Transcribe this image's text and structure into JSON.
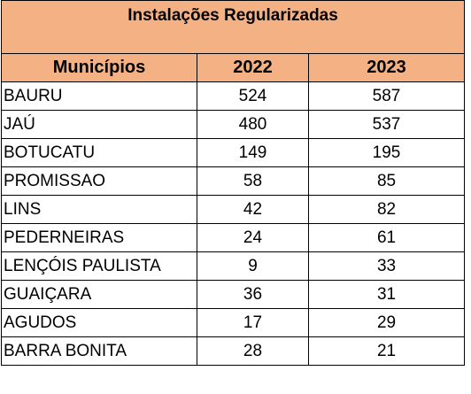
{
  "table": {
    "title": "Instalações Regularizadas",
    "headers": [
      "Municípios",
      "2022",
      "2023"
    ],
    "rows": [
      {
        "municipio": "BAURU",
        "y2022": "524",
        "y2023": "587"
      },
      {
        "municipio": "JAÚ",
        "y2022": "480",
        "y2023": "537"
      },
      {
        "municipio": "BOTUCATU",
        "y2022": "149",
        "y2023": "195"
      },
      {
        "municipio": "PROMISSAO",
        "y2022": "58",
        "y2023": "85"
      },
      {
        "municipio": "LINS",
        "y2022": "42",
        "y2023": "82"
      },
      {
        "municipio": "PEDERNEIRAS",
        "y2022": "24",
        "y2023": "61"
      },
      {
        "municipio": "LENÇÓIS PAULISTA",
        "y2022": "9",
        "y2023": "33"
      },
      {
        "municipio": "GUAIÇARA",
        "y2022": "36",
        "y2023": "31"
      },
      {
        "municipio": "AGUDOS",
        "y2022": "17",
        "y2023": "29"
      },
      {
        "municipio": "BARRA BONITA",
        "y2022": "28",
        "y2023": "21"
      }
    ]
  },
  "colors": {
    "header_fill": "#f4b183",
    "grid_line": "#000000",
    "background": "#ffffff"
  }
}
